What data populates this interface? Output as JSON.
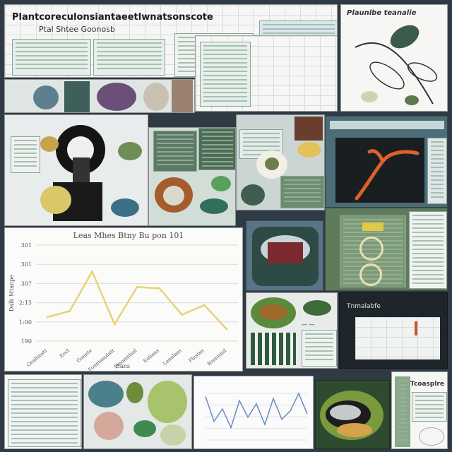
{
  "header": {
    "title": "Plantcoreculonsiantaeetlwnatsonscote",
    "subtitle": "Ptal Shtee Goonosb"
  },
  "panels": {
    "botanic_title": "Plaunlbe teanalie",
    "dark_panel_title": "Tnmalabfe",
    "bottom_right_title": "Tcoasplre"
  },
  "chart_data": {
    "type": "line",
    "title": "Leas Mhes Btny Bu pon 101",
    "categories": [
      "Gealtinstt",
      "Eocl",
      "Gonnte",
      "Fonntamdatt",
      "Fmomnlsal",
      "Eotlons",
      "Lannlaes",
      "Plnstes",
      "Rsnnnnsl"
    ],
    "values": [
      260,
      265,
      298,
      254,
      285,
      284,
      262,
      270,
      250
    ],
    "y_ticks": [
      "301",
      "301",
      "307",
      "2:15",
      "1:00",
      "190"
    ],
    "ylabel": "Dalk Mtanpe",
    "xlabel": "Eans",
    "ylim": [
      240,
      320
    ],
    "grid": true,
    "line_color": "#e8d27a"
  },
  "bottom_chart": {
    "type": "line",
    "values": [
      42,
      18,
      30,
      12,
      38,
      22,
      35,
      15,
      40,
      20,
      28,
      45,
      25
    ],
    "line_color": "#6a8abf"
  }
}
